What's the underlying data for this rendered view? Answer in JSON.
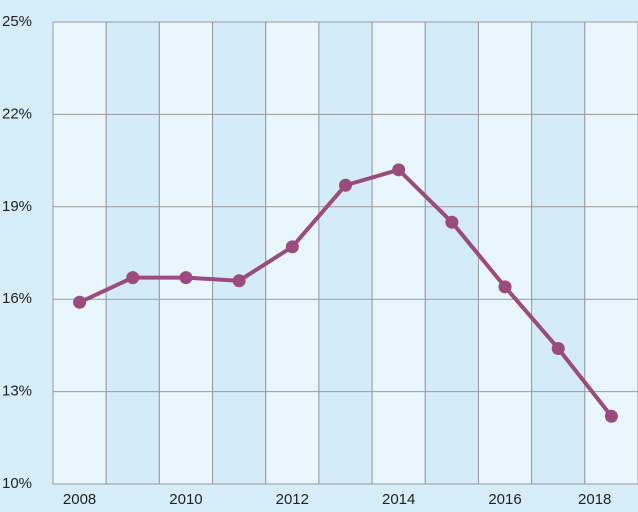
{
  "chart_data": {
    "type": "line",
    "x": [
      2008,
      2009,
      2010,
      2011,
      2012,
      2013,
      2014,
      2015,
      2016,
      2017,
      2018
    ],
    "series": [
      {
        "name": null,
        "color": "#9b4b7d",
        "values": [
          15.9,
          16.7,
          16.7,
          16.6,
          17.7,
          19.7,
          20.2,
          18.5,
          16.4,
          14.4,
          12.2
        ]
      }
    ],
    "xlim": [
      2007.5,
      2018.5
    ],
    "xticks": [
      2008,
      2010,
      2012,
      2014,
      2016,
      2018
    ],
    "ylim": [
      10,
      25
    ],
    "yticks": [
      {
        "value": 10,
        "label": "10%"
      },
      {
        "value": 13,
        "label": "13%"
      },
      {
        "value": 16,
        "label": "16%"
      },
      {
        "value": 19,
        "label": "19%"
      },
      {
        "value": 22,
        "label": "22%"
      },
      {
        "value": 25,
        "label": "25%"
      }
    ],
    "grid": true
  }
}
